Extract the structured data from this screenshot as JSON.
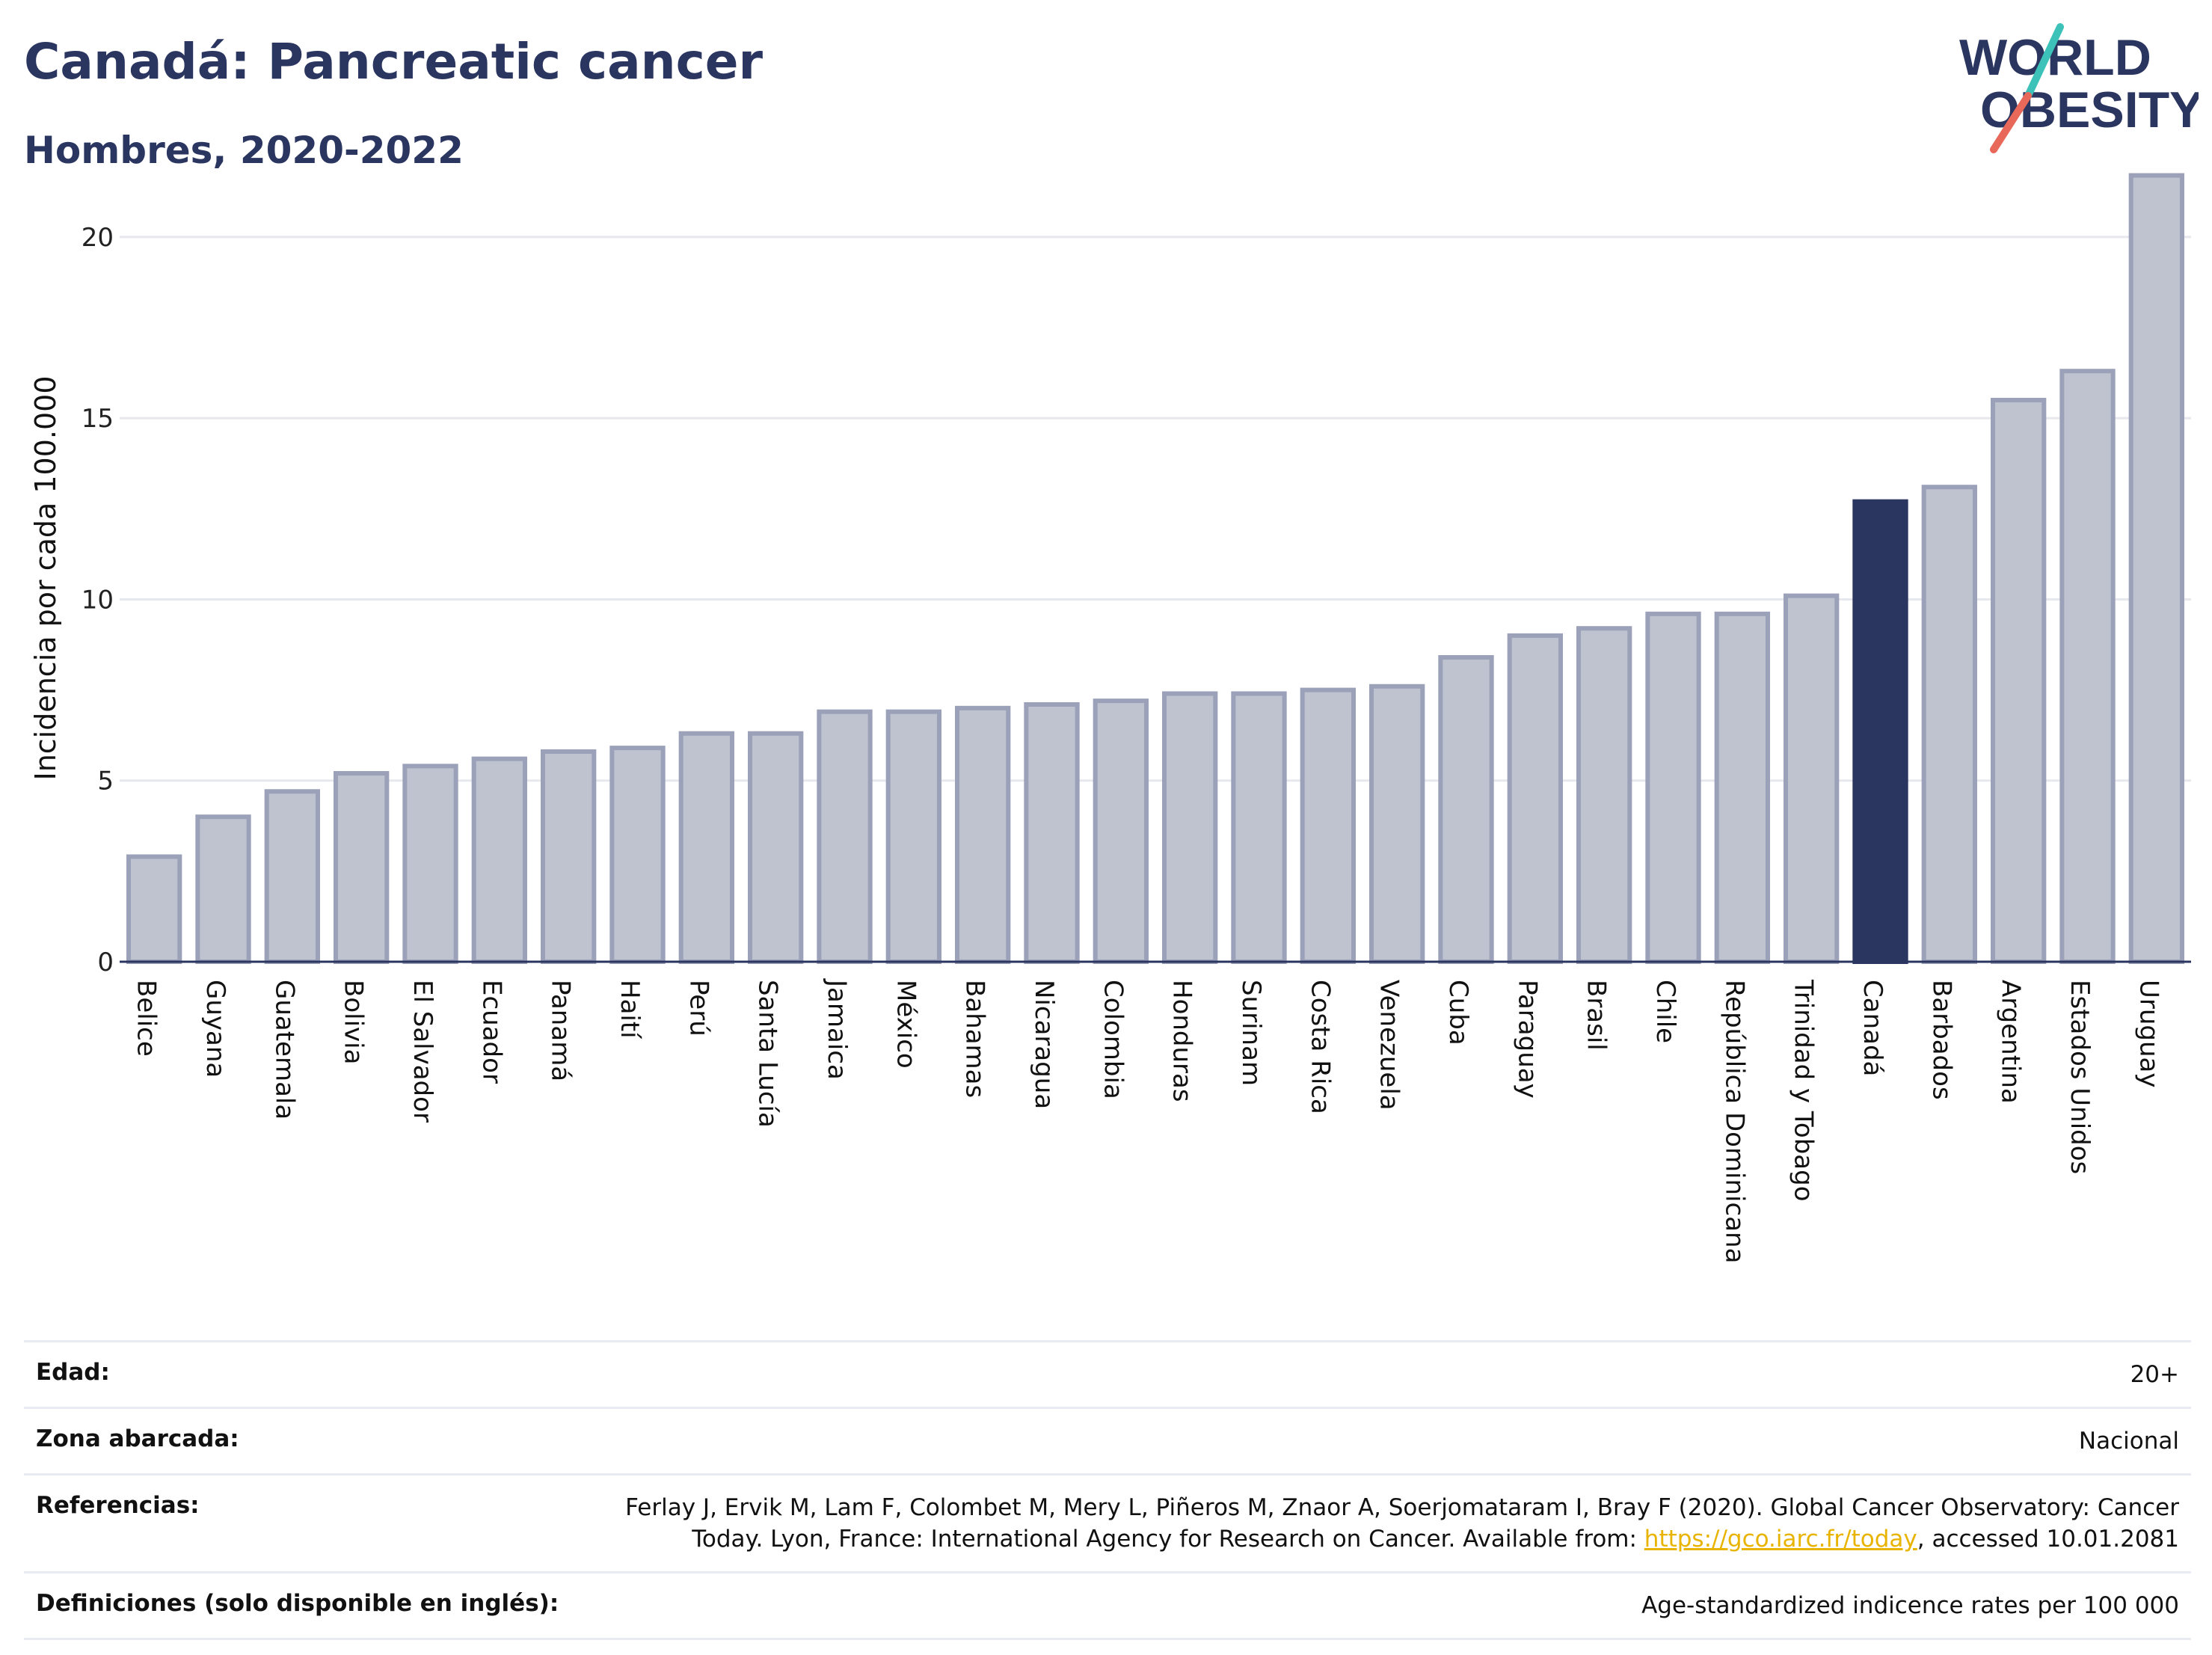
{
  "header": {
    "title": "Canadá: Pancreatic cancer",
    "subtitle": "Hombres, 2020-2022"
  },
  "logo": {
    "line1": "WORLD",
    "line2": "OBESITY",
    "colors": {
      "text": "#2a3560",
      "slash_teal": "#3cc2b8",
      "slash_red": "#e8685a"
    }
  },
  "colors": {
    "bar_fill": "#bfc3d0",
    "bar_stroke": "#9aa1b8",
    "highlight": "#2a3560",
    "grid": "#e6e8ee",
    "axis": "#2a3560"
  },
  "chart_data": {
    "type": "bar",
    "ylabel": "Incidencia por cada 100.000",
    "ylim": [
      0,
      22
    ],
    "yticks": [
      0,
      5,
      10,
      15,
      20
    ],
    "grid": true,
    "highlight": "Canadá",
    "categories": [
      "Belice",
      "Guyana",
      "Guatemala",
      "Bolivia",
      "El Salvador",
      "Ecuador",
      "Panamá",
      "Haití",
      "Perú",
      "Santa Lucía",
      "Jamaica",
      "México",
      "Bahamas",
      "Nicaragua",
      "Colombia",
      "Honduras",
      "Surinam",
      "Costa Rica",
      "Venezuela",
      "Cuba",
      "Paraguay",
      "Brasil",
      "Chile",
      "República Dominicana",
      "Trinidad y Tobago",
      "Canadá",
      "Barbados",
      "Argentina",
      "Estados Unidos",
      "Uruguay"
    ],
    "values": [
      2.9,
      4.0,
      4.7,
      5.2,
      5.4,
      5.6,
      5.8,
      5.9,
      6.3,
      6.3,
      6.9,
      6.9,
      7.0,
      7.1,
      7.2,
      7.4,
      7.4,
      7.5,
      7.6,
      8.4,
      9.0,
      9.2,
      9.6,
      9.6,
      10.1,
      12.7,
      13.1,
      15.5,
      16.3,
      21.7
    ]
  },
  "info": {
    "edad_label": "Edad:",
    "edad_value": "20+",
    "zona_label": "Zona abarcada:",
    "zona_value": "Nacional",
    "ref_label": "Referencias:",
    "ref_text_1": "Ferlay J, Ervik M, Lam F, Colombet M, Mery L, Piñeros M, Znaor A, Soerjomataram I, Bray F (2020). Global Cancer Observatory: Cancer Today. Lyon, France: International Agency for Research on Cancer. Available from: ",
    "ref_link": "https://gco.iarc.fr/today",
    "ref_text_2": ", accessed 10.01.2081",
    "def_label": "Definiciones (solo disponible en inglés):",
    "def_value": "Age-standardized indicence rates per 100 000"
  }
}
